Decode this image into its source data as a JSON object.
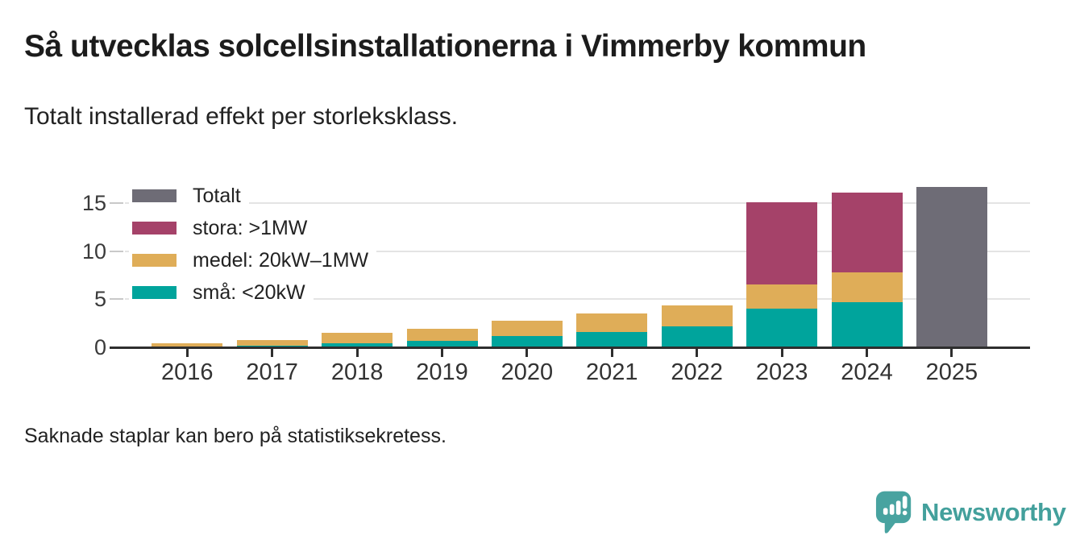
{
  "page": {
    "title": "Så utvecklas solcellsinstallationerna i Vimmerby kommun",
    "subtitle": "Totalt installerad effekt per storleksklass.",
    "footnote": "Saknade staplar kan bero på statistiksekretess."
  },
  "branding": {
    "logo_text": "Newsworthy",
    "logo_icon": "bar-chart-speech-bubble-icon",
    "logo_color": "#43a09c"
  },
  "colors": {
    "total": "#6e6c76",
    "stora": "#a54269",
    "medel": "#dfad58",
    "sma": "#00a49c",
    "gridline": "#e4e4e4",
    "axis": "#2e2e2e"
  },
  "chart_data": {
    "type": "bar",
    "stacked": true,
    "categories": [
      "2016",
      "2017",
      "2018",
      "2019",
      "2020",
      "2021",
      "2022",
      "2023",
      "2024",
      "2025"
    ],
    "series": [
      {
        "name": "små: <20kW",
        "color": "#00a49c",
        "values": [
          0.1,
          0.2,
          0.45,
          0.7,
          1.2,
          1.6,
          2.2,
          4.0,
          4.7,
          null
        ]
      },
      {
        "name": "medel: 20kW–1MW",
        "color": "#dfad58",
        "values": [
          0.35,
          0.55,
          1.05,
          1.2,
          1.6,
          1.9,
          2.2,
          2.5,
          3.1,
          null
        ]
      },
      {
        "name": "stora: >1MW",
        "color": "#a54269",
        "values": [
          null,
          null,
          null,
          null,
          null,
          null,
          null,
          8.6,
          8.3,
          null
        ]
      },
      {
        "name": "Totalt",
        "color": "#6e6c76",
        "values": [
          null,
          null,
          null,
          null,
          null,
          null,
          null,
          null,
          null,
          16.7
        ]
      }
    ],
    "legend": {
      "position": "top-left",
      "order": [
        "Totalt",
        "stora: >1MW",
        "medel: 20kW–1MW",
        "små: <20kW"
      ]
    },
    "yticks": [
      0,
      5,
      10,
      15
    ],
    "ylim": [
      0,
      17
    ],
    "xlabel": "",
    "ylabel": "",
    "grid": true
  }
}
